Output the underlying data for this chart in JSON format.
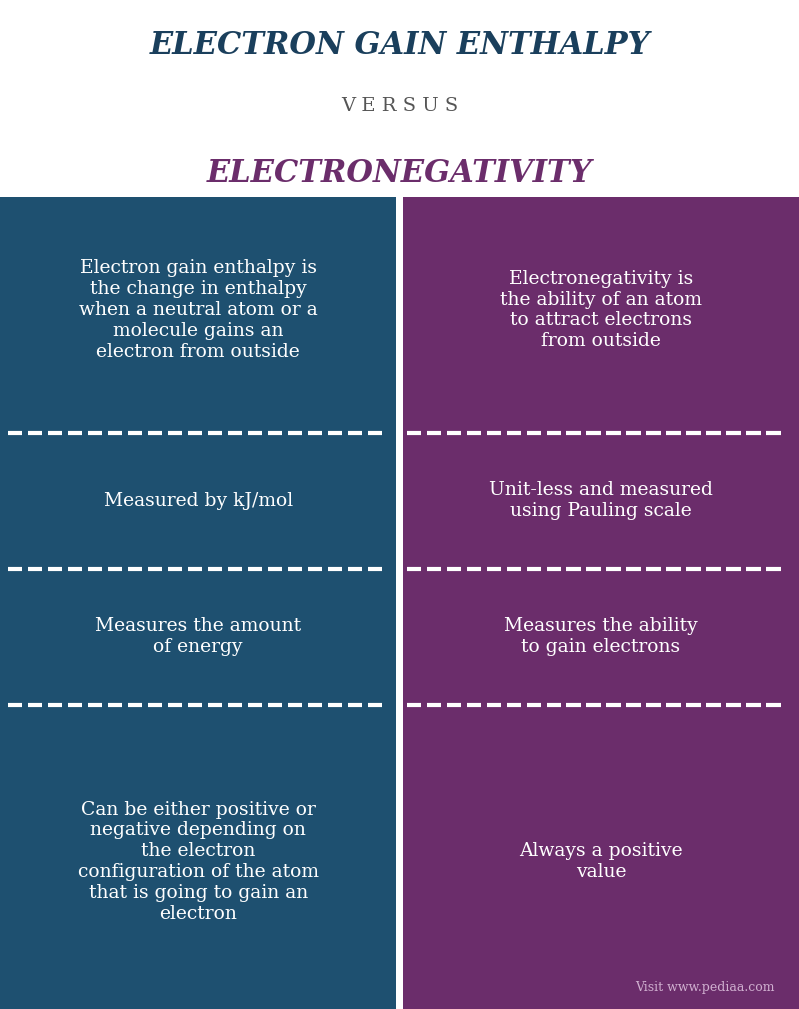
{
  "title1": "ELECTRON GAIN ENTHALPY",
  "versus": "V E R S U S",
  "title2": "ELECTRONEGATIVITY",
  "title1_color": "#1a3f5c",
  "versus_color": "#555555",
  "title2_color": "#6b2d6b",
  "left_bg": "#1e5070",
  "right_bg": "#6b2d6b",
  "text_color": "#ffffff",
  "divider_color": "#ffffff",
  "header_bg": "#ffffff",
  "rows": [
    {
      "left": "Electron gain enthalpy is\nthe change in enthalpy\nwhen a neutral atom or a\nmolecule gains an\nelectron from outside",
      "right": "Electronegativity is\nthe ability of an atom\nto attract electrons\nfrom outside"
    },
    {
      "left": "Measured by kJ/mol",
      "right": "Unit-less and measured\nusing Pauling scale"
    },
    {
      "left": "Measures the amount\nof energy",
      "right": "Measures the ability\nto gain electrons"
    },
    {
      "left": "Can be either positive or\nnegative depending on\nthe electron\nconfiguration of the atom\nthat is going to gain an\nelectron",
      "right": "Always a positive\nvalue"
    }
  ],
  "watermark": "Visit www.pediaa.com",
  "fig_width": 7.99,
  "fig_height": 10.09
}
